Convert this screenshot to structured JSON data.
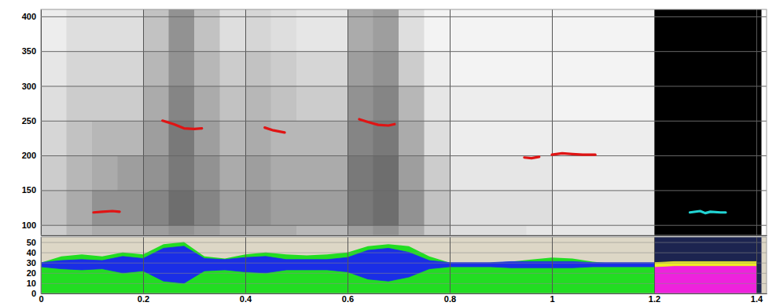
{
  "chart_data": [
    {
      "type": "spectrogram",
      "xlim": [
        0,
        1.42
      ],
      "xticks": [
        0,
        0.2,
        0.4,
        0.6,
        0.8,
        1,
        1.2,
        1.4
      ],
      "ylim": [
        85,
        410
      ],
      "yticks": [
        100,
        150,
        200,
        250,
        300,
        350,
        400
      ],
      "grid": true,
      "tick_labels": "y",
      "spectrogram": {
        "x": [
          0,
          0.05,
          0.1,
          0.15,
          0.2,
          0.25,
          0.3,
          0.35,
          0.4,
          0.45,
          0.5,
          0.55,
          0.6,
          0.65,
          0.7,
          0.75,
          0.8,
          0.85,
          0.9,
          0.95,
          1,
          1.05,
          1.1,
          1.15,
          1.2
        ],
        "y": [
          85,
          100,
          150,
          200,
          250,
          300,
          350,
          410
        ],
        "cells": [
          [
            30,
            40,
            45,
            45,
            50,
            55,
            50,
            45,
            45,
            45,
            40,
            40,
            50,
            55,
            45,
            30,
            20,
            20,
            20,
            15,
            15,
            15,
            15,
            15
          ],
          [
            35,
            45,
            55,
            55,
            60,
            70,
            60,
            50,
            55,
            50,
            50,
            50,
            65,
            70,
            55,
            35,
            20,
            20,
            20,
            20,
            15,
            15,
            15,
            15
          ],
          [
            30,
            40,
            45,
            50,
            55,
            65,
            55,
            45,
            50,
            45,
            45,
            45,
            65,
            70,
            50,
            30,
            15,
            15,
            15,
            15,
            10,
            10,
            10,
            10
          ],
          [
            25,
            35,
            40,
            40,
            50,
            65,
            50,
            40,
            45,
            40,
            40,
            40,
            60,
            65,
            45,
            20,
            10,
            10,
            10,
            10,
            10,
            10,
            10,
            10
          ],
          [
            20,
            30,
            30,
            30,
            45,
            60,
            45,
            35,
            40,
            35,
            30,
            30,
            55,
            60,
            40,
            15,
            10,
            10,
            10,
            10,
            5,
            5,
            5,
            5
          ],
          [
            15,
            25,
            25,
            25,
            40,
            55,
            40,
            30,
            35,
            30,
            25,
            25,
            50,
            55,
            30,
            10,
            5,
            5,
            5,
            5,
            5,
            5,
            5,
            5
          ],
          [
            10,
            20,
            20,
            20,
            35,
            55,
            35,
            20,
            25,
            20,
            15,
            15,
            45,
            50,
            20,
            5,
            5,
            5,
            5,
            5,
            5,
            5,
            5,
            5
          ]
        ]
      },
      "selection": [
        1.2,
        1.41
      ],
      "series": [
        {
          "color": "#e01414",
          "type": "line",
          "x": [
            0.103,
            0.12,
            0.14,
            0.154,
            0.19,
            0.238,
            0.26,
            0.28,
            0.3,
            0.315,
            0.37,
            0.438,
            0.455,
            0.477,
            0.55,
            0.623,
            0.64,
            0.66,
            0.68,
            0.692,
            0.8,
            0.946,
            0.96,
            0.975,
            0.99,
            1.0,
            1.02,
            1.04,
            1.06,
            1.085
          ],
          "values": [
            118,
            119,
            120,
            119,
            null,
            250,
            245,
            239,
            238,
            239,
            null,
            240,
            236,
            233,
            null,
            252,
            248,
            244,
            243,
            245,
            null,
            197,
            196,
            198,
            null,
            201,
            203,
            202,
            201,
            201
          ]
        },
        {
          "color": "#22d4d4",
          "type": "line",
          "x": [
            1.27,
            1.29,
            1.3,
            1.31,
            1.33,
            1.34
          ],
          "values": [
            118,
            120,
            117,
            119,
            118,
            118
          ]
        }
      ]
    },
    {
      "type": "waveform",
      "xlim": [
        0,
        1.42
      ],
      "xticks": [
        0,
        0.2,
        0.4,
        0.6,
        0.8,
        1,
        1.2,
        1.4
      ],
      "ylim": [
        0,
        55
      ],
      "yticks": [
        0,
        10,
        20,
        30,
        40,
        50
      ],
      "grid": true,
      "selection": [
        1.2,
        1.41
      ],
      "x": [
        0,
        0.04,
        0.08,
        0.12,
        0.16,
        0.2,
        0.24,
        0.28,
        0.32,
        0.36,
        0.4,
        0.44,
        0.48,
        0.52,
        0.56,
        0.6,
        0.64,
        0.68,
        0.72,
        0.76,
        0.8,
        0.84,
        0.88,
        0.92,
        0.96,
        1.0,
        1.04,
        1.08,
        1.12,
        1.16,
        1.2,
        1.24,
        1.28,
        1.32,
        1.36,
        1.4
      ],
      "series": [
        {
          "type": "area",
          "color": "#22dd22",
          "values": [
            30,
            36,
            38,
            36,
            40,
            38,
            48,
            50,
            36,
            34,
            38,
            40,
            38,
            37,
            38,
            40,
            46,
            48,
            46,
            36,
            30,
            29,
            30,
            31,
            33,
            35,
            34,
            31,
            29,
            29,
            29,
            28,
            28,
            28,
            28,
            28
          ]
        },
        {
          "type": "band",
          "color": "#1a2ee6",
          "low": [
            26,
            24,
            23,
            24,
            20,
            22,
            12,
            10,
            22,
            23,
            21,
            20,
            23,
            23,
            23,
            21,
            14,
            12,
            16,
            24,
            26,
            26,
            26,
            25,
            25,
            25,
            25,
            26,
            26,
            26,
            26,
            27,
            27,
            27,
            27,
            27
          ],
          "high": [
            30,
            32,
            33,
            32,
            36,
            34,
            44,
            46,
            34,
            33,
            35,
            36,
            33,
            33,
            33,
            35,
            42,
            44,
            40,
            32,
            30,
            30,
            30,
            31,
            31,
            31,
            31,
            30,
            30,
            30,
            30,
            31,
            31,
            31,
            31,
            31
          ]
        }
      ]
    }
  ]
}
